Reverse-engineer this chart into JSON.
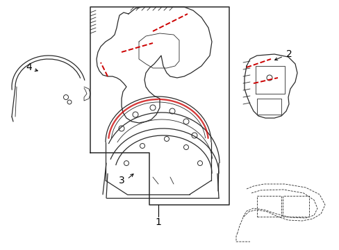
{
  "background_color": "#ffffff",
  "line_color": "#2a2a2a",
  "red_color": "#cc0000",
  "gray_color": "#888888",
  "label_fontsize": 10,
  "fig_width": 4.89,
  "fig_height": 3.6,
  "dpi": 100
}
